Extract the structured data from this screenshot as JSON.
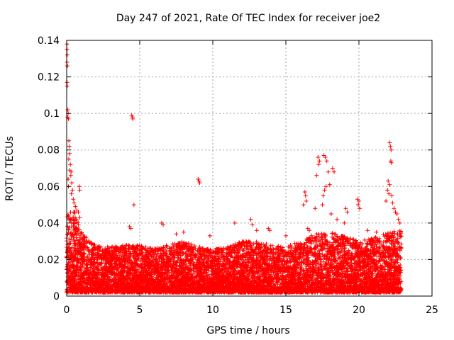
{
  "chart_data": {
    "type": "scatter",
    "title": "Day 247 of 2021, Rate Of TEC Index for receiver joe2",
    "xlabel": "GPS time / hours",
    "ylabel": "ROTI / TECUs",
    "xlim": [
      0,
      25
    ],
    "ylim": [
      0,
      0.14
    ],
    "x_ticks": [
      "0",
      "5",
      "10",
      "15",
      "20",
      "25"
    ],
    "y_ticks": [
      "0",
      "0.02",
      "0.04",
      "0.06",
      "0.08",
      "0.1",
      "0.12",
      "0.14"
    ],
    "grid": true,
    "marker": "+",
    "color": "#ff0000",
    "density_profile": [
      {
        "x": 0.0,
        "top": 0.045
      },
      {
        "x": 0.5,
        "top": 0.048
      },
      {
        "x": 1.0,
        "top": 0.035
      },
      {
        "x": 2.0,
        "top": 0.028
      },
      {
        "x": 3.0,
        "top": 0.027
      },
      {
        "x": 4.0,
        "top": 0.028
      },
      {
        "x": 5.0,
        "top": 0.028
      },
      {
        "x": 6.0,
        "top": 0.026
      },
      {
        "x": 7.0,
        "top": 0.028
      },
      {
        "x": 8.0,
        "top": 0.03
      },
      {
        "x": 9.0,
        "top": 0.027
      },
      {
        "x": 10.0,
        "top": 0.026
      },
      {
        "x": 11.0,
        "top": 0.027
      },
      {
        "x": 12.0,
        "top": 0.03
      },
      {
        "x": 13.0,
        "top": 0.03
      },
      {
        "x": 14.0,
        "top": 0.028
      },
      {
        "x": 15.0,
        "top": 0.027
      },
      {
        "x": 16.0,
        "top": 0.03
      },
      {
        "x": 17.0,
        "top": 0.034
      },
      {
        "x": 18.0,
        "top": 0.035
      },
      {
        "x": 19.0,
        "top": 0.033
      },
      {
        "x": 20.0,
        "top": 0.03
      },
      {
        "x": 21.0,
        "top": 0.032
      },
      {
        "x": 22.0,
        "top": 0.035
      },
      {
        "x": 22.8,
        "top": 0.036
      }
    ],
    "x_end": 22.9,
    "outliers": [
      [
        0.02,
        0.138
      ],
      [
        0.03,
        0.135
      ],
      [
        0.04,
        0.132
      ],
      [
        0.02,
        0.128
      ],
      [
        0.05,
        0.126
      ],
      [
        0.03,
        0.117
      ],
      [
        0.04,
        0.115
      ],
      [
        0.08,
        0.102
      ],
      [
        0.1,
        0.1
      ],
      [
        0.07,
        0.098
      ],
      [
        0.12,
        0.097
      ],
      [
        0.15,
        0.085
      ],
      [
        0.18,
        0.082
      ],
      [
        0.2,
        0.078
      ],
      [
        0.14,
        0.075
      ],
      [
        0.25,
        0.072
      ],
      [
        0.22,
        0.069
      ],
      [
        0.3,
        0.068
      ],
      [
        0.28,
        0.066
      ],
      [
        0.1,
        0.064
      ],
      [
        0.35,
        0.062
      ],
      [
        0.12,
        0.06
      ],
      [
        0.4,
        0.058
      ],
      [
        0.32,
        0.056
      ],
      [
        0.45,
        0.053
      ],
      [
        0.5,
        0.051
      ],
      [
        0.6,
        0.049
      ],
      [
        0.7,
        0.047
      ],
      [
        0.8,
        0.046
      ],
      [
        0.9,
        0.043
      ],
      [
        0.85,
        0.06
      ],
      [
        0.9,
        0.058
      ],
      [
        4.45,
        0.099
      ],
      [
        4.5,
        0.098
      ],
      [
        4.52,
        0.097
      ],
      [
        4.6,
        0.05
      ],
      [
        4.3,
        0.038
      ],
      [
        4.4,
        0.037
      ],
      [
        6.5,
        0.04
      ],
      [
        6.6,
        0.039
      ],
      [
        8.0,
        0.035
      ],
      [
        7.5,
        0.034
      ],
      [
        9.0,
        0.064
      ],
      [
        9.05,
        0.063
      ],
      [
        9.1,
        0.062
      ],
      [
        9.8,
        0.033
      ],
      [
        11.5,
        0.04
      ],
      [
        12.6,
        0.042
      ],
      [
        12.7,
        0.039
      ],
      [
        13.0,
        0.036
      ],
      [
        13.8,
        0.037
      ],
      [
        13.9,
        0.036
      ],
      [
        15.0,
        0.033
      ],
      [
        16.3,
        0.057
      ],
      [
        16.35,
        0.055
      ],
      [
        16.4,
        0.052
      ],
      [
        16.2,
        0.05
      ],
      [
        16.5,
        0.037
      ],
      [
        16.6,
        0.036
      ],
      [
        17.1,
        0.066
      ],
      [
        17.0,
        0.048
      ],
      [
        17.2,
        0.076
      ],
      [
        17.3,
        0.074
      ],
      [
        17.25,
        0.072
      ],
      [
        17.6,
        0.077
      ],
      [
        17.7,
        0.076
      ],
      [
        17.8,
        0.074
      ],
      [
        17.9,
        0.068
      ],
      [
        17.75,
        0.06
      ],
      [
        17.65,
        0.058
      ],
      [
        17.55,
        0.055
      ],
      [
        17.5,
        0.05
      ],
      [
        18.0,
        0.061
      ],
      [
        18.2,
        0.07
      ],
      [
        18.3,
        0.068
      ],
      [
        18.1,
        0.045
      ],
      [
        18.5,
        0.042
      ],
      [
        19.1,
        0.048
      ],
      [
        19.2,
        0.046
      ],
      [
        19.0,
        0.04
      ],
      [
        19.9,
        0.053
      ],
      [
        20.0,
        0.052
      ],
      [
        19.95,
        0.05
      ],
      [
        20.05,
        0.048
      ],
      [
        20.6,
        0.036
      ],
      [
        21.2,
        0.035
      ],
      [
        22.1,
        0.084
      ],
      [
        22.15,
        0.082
      ],
      [
        22.2,
        0.08
      ],
      [
        22.18,
        0.074
      ],
      [
        22.22,
        0.073
      ],
      [
        22.0,
        0.063
      ],
      [
        22.1,
        0.061
      ],
      [
        21.95,
        0.058
      ],
      [
        22.05,
        0.056
      ],
      [
        22.25,
        0.055
      ],
      [
        21.85,
        0.052
      ],
      [
        22.3,
        0.051
      ],
      [
        22.4,
        0.048
      ],
      [
        22.5,
        0.046
      ],
      [
        22.6,
        0.045
      ],
      [
        22.7,
        0.042
      ],
      [
        22.8,
        0.04
      ]
    ]
  }
}
